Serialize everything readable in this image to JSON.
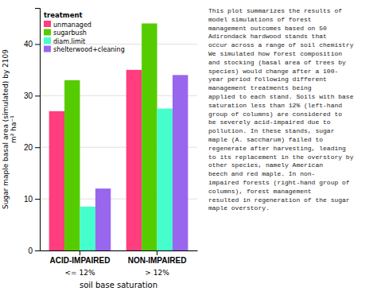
{
  "chart_data": {
    "type": "bar",
    "categories": [
      "ACID-IMPAIRED",
      "NON-IMPAIRED"
    ],
    "sub_labels": [
      "<= 12%",
      "> 12%"
    ],
    "series": [
      {
        "name": "unmanaged",
        "color": "#FF3D7F",
        "values": [
          27,
          35
        ]
      },
      {
        "name": "sugarbush",
        "color": "#55CC00",
        "values": [
          33,
          44
        ]
      },
      {
        "name": "diam.limit",
        "color": "#44FFCC",
        "values": [
          8.5,
          27.5
        ]
      },
      {
        "name": "shelterwood+cleaning",
        "color": "#9966EE",
        "values": [
          12,
          34
        ]
      }
    ],
    "xlabel": "soil base saturation",
    "ylabel": "Sugar maple basal area (simulated) by 2109\nm² ha⁻¹",
    "legend_title": "treatment",
    "legend": "upper left",
    "ylim": [
      0,
      47
    ],
    "yticks": [
      0,
      10,
      20,
      30,
      40
    ],
    "grid": true,
    "annotations": [
      "This plot summarizes the results of\nmodel simulations of forest\nmanagement outcomes based on 50\nAdirondack hardwood stands that\noccur across a range of soil chemistry\nWe simulated how forest composition\nand stocking (basal area of trees by\nspecies) would change after a 100-\nyear period following different\nmanagement treatments being\napplied to each stand. Soils with base\nsaturation less than 12% (left-hand\ngroup of columns) are considered to\nbe severely acid-impaired due to\npollution. In these stands, sugar\nmaple (A. saccharum) failed to\nregenerate after harvesting, leading\nto its replacement in the overstory by\nother species, namely American\nbeech and red maple. In non-\nimpaired forests (right-hand group of\ncolumns), forest management\nresulted in regeneration of the sugar\nmaple overstory."
    ]
  }
}
